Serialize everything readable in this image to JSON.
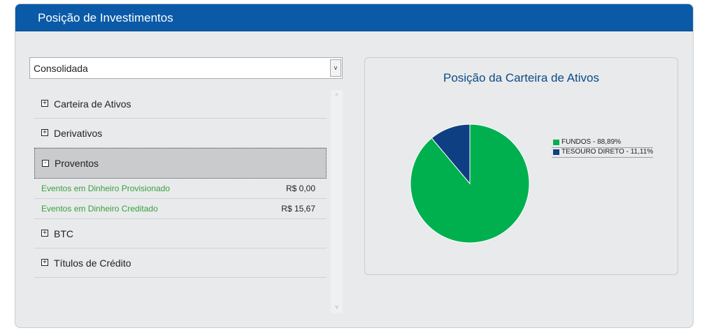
{
  "header": {
    "title": "Posição de Investimentos"
  },
  "select": {
    "value": "Consolidada",
    "arrow": "v"
  },
  "sections": [
    {
      "label": "Carteira de Ativos",
      "icon": "+"
    },
    {
      "label": "Derivativos",
      "icon": "+"
    },
    {
      "label": "Proventos",
      "icon": "-"
    },
    {
      "label": "BTC",
      "icon": "+"
    },
    {
      "label": "Títulos de Crédito",
      "icon": "+"
    }
  ],
  "proventos": [
    {
      "label": "Eventos em Dinheiro Provisionado",
      "value": "R$ 0,00"
    },
    {
      "label": "Eventos em Dinheiro Creditado",
      "value": "R$ 15,67"
    }
  ],
  "scroll": {
    "up": "^",
    "down": "v"
  },
  "colors": {
    "header": "#0a5aa8",
    "fundos": "#00b04f",
    "tesouro": "#0e3f82",
    "link_green": "#3aa13a"
  },
  "chart_data": {
    "type": "pie",
    "title": "Posição da Carteira de Ativos",
    "slices": [
      {
        "label": "FUNDOS - 88,89%",
        "value": 88.89,
        "color": "#00b04f"
      },
      {
        "label": "TESOURO DIRETO - 11,11%",
        "value": 11.11,
        "color": "#0e3f82"
      }
    ],
    "legend_position": "right"
  }
}
